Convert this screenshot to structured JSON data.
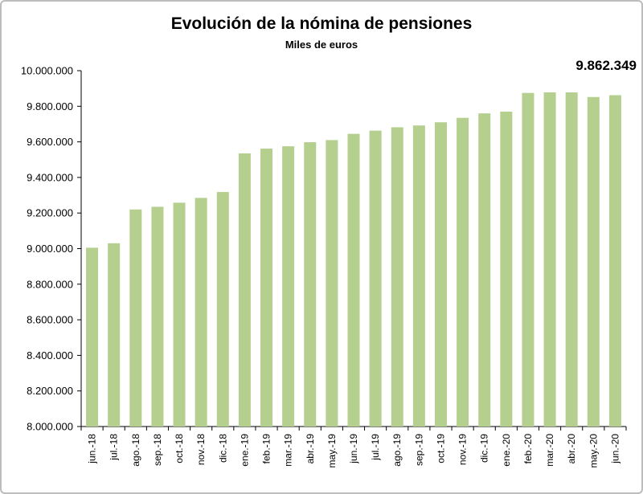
{
  "chart_data": {
    "type": "bar",
    "title": "Evolución de la nómina de pensiones",
    "subtitle": "Miles de euros",
    "annotation": "9.862.349",
    "xlabel": "",
    "ylabel": "",
    "ylim": [
      8000000,
      10000000
    ],
    "yticks": [
      8000000,
      8200000,
      8400000,
      8600000,
      8800000,
      9000000,
      9200000,
      9400000,
      9600000,
      9800000,
      10000000
    ],
    "ytick_labels": [
      "8.000.000",
      "8.200.000",
      "8.400.000",
      "8.600.000",
      "8.800.000",
      "9.000.000",
      "9.200.000",
      "9.400.000",
      "9.600.000",
      "9.800.000",
      "10.000.000"
    ],
    "categories": [
      "jun.-18",
      "jul.-18",
      "ago.-18",
      "sep.-18",
      "oct.-18",
      "nov.-18",
      "dic.-18",
      "ene.-19",
      "feb.-19",
      "mar.-19",
      "abr.-19",
      "may.-19",
      "jun.-19",
      "jul.-19",
      "ago.-19",
      "sep.-19",
      "oct.-19",
      "nov.-19",
      "dic.-19",
      "ene.-20",
      "feb.-20",
      "mar.-20",
      "abr.-20",
      "may.-20",
      "jun.-20"
    ],
    "values": [
      9005000,
      9030000,
      9220000,
      9235000,
      9258000,
      9285000,
      9318000,
      9535000,
      9562000,
      9575000,
      9598000,
      9610000,
      9645000,
      9663000,
      9682000,
      9692000,
      9710000,
      9735000,
      9760000,
      9770000,
      9875000,
      9878000,
      9878000,
      9852000,
      9862349
    ],
    "bar_color": "#b5cf8e",
    "grid": false,
    "legend": "none"
  }
}
